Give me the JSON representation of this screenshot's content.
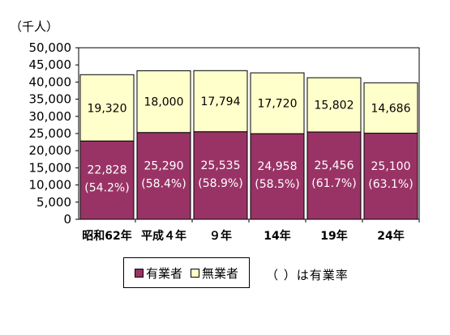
{
  "chart_data": {
    "type": "bar",
    "stacked": true,
    "unit_label": "（千人）",
    "categories": [
      "昭和62年",
      "平成４年",
      "９年",
      "14年",
      "19年",
      "24年"
    ],
    "series": [
      {
        "name": "有業者",
        "values": [
          22828,
          25290,
          25535,
          24958,
          25456,
          25100
        ],
        "value_labels": [
          "22,828",
          "25,290",
          "25,535",
          "24,958",
          "25,456",
          "25,100"
        ],
        "rate_labels": [
          "(54.2%)",
          "(58.4%)",
          "(58.9%)",
          "(58.5%)",
          "(61.7%)",
          "(63.1%)"
        ],
        "color": "#993366"
      },
      {
        "name": "無業者",
        "values": [
          19320,
          18000,
          17794,
          17720,
          15802,
          14686
        ],
        "value_labels": [
          "19,320",
          "18,000",
          "17,794",
          "17,720",
          "15,802",
          "14,686"
        ],
        "color": "#ffffcc"
      }
    ],
    "ylim": [
      0,
      50000
    ],
    "yticks": [
      0,
      5000,
      10000,
      15000,
      20000,
      25000,
      30000,
      35000,
      40000,
      45000,
      50000
    ],
    "ytick_labels": [
      "0",
      "5,000",
      "10,000",
      "15,000",
      "20,000",
      "25,000",
      "30,000",
      "35,000",
      "40,000",
      "45,000",
      "50,000"
    ],
    "grid": false,
    "legend_position": "bottom"
  },
  "legend": {
    "employed_label": "有業者",
    "unemployed_label": "無業者",
    "note": "（ ）は有業率"
  }
}
